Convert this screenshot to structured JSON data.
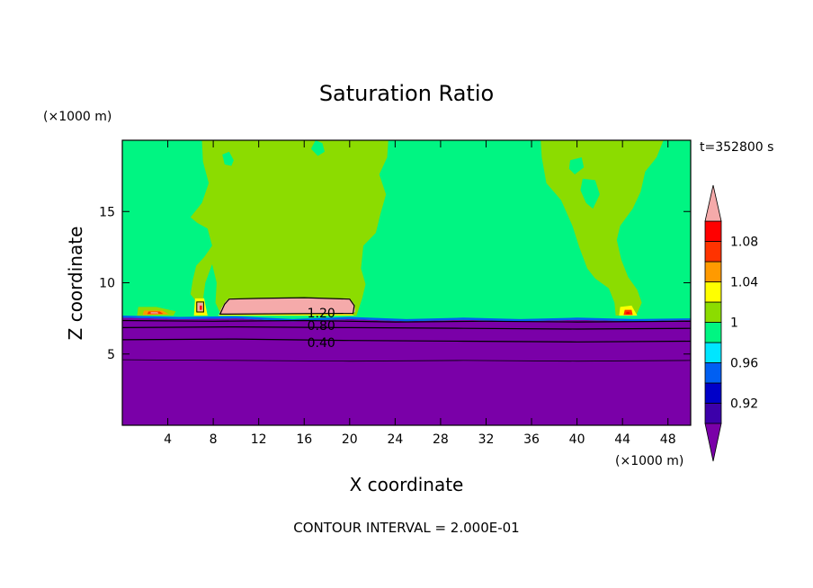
{
  "chart_data": {
    "type": "heatmap",
    "title": "Saturation Ratio",
    "xlabel": "X coordinate",
    "ylabel": "Z coordinate",
    "x_unit": "(×1000 m)",
    "y_unit": "(×1000 m)",
    "time_label": "t=352800 s",
    "footer": "CONTOUR INTERVAL = 2.000E-01",
    "xlim": [
      0,
      50
    ],
    "ylim": [
      0,
      20
    ],
    "x_ticks": [
      4,
      8,
      12,
      16,
      20,
      24,
      28,
      32,
      36,
      40,
      44,
      48
    ],
    "y_ticks": [
      5,
      10,
      15
    ],
    "colorbar": {
      "levels": [
        0.92,
        0.96,
        1,
        1.04,
        1.08
      ],
      "labels": [
        "0.92",
        "0.96",
        "1",
        "1.04",
        "1.08"
      ],
      "colors": [
        "#7a00a8",
        "#3c00aa",
        "#0000c8",
        "#005ff2",
        "#00e6ff",
        "#00f582",
        "#8cdc00",
        "#ffff00",
        "#ff9a00",
        "#ff3300",
        "#ff0000",
        "#f5aaaa"
      ]
    },
    "contour_labels": [
      {
        "text": "1.20",
        "x": 17.5,
        "z": 7.9
      },
      {
        "text": "0.80",
        "x": 17.5,
        "z": 7.0
      },
      {
        "text": "0.40",
        "x": 17.5,
        "z": 5.8
      }
    ]
  }
}
